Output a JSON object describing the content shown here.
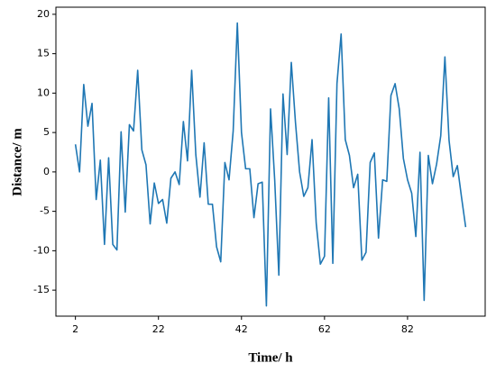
{
  "chart_data": {
    "type": "line",
    "xlabel": "Time/ h",
    "ylabel": "Distance/ m",
    "x": [
      2,
      3,
      4,
      5,
      6,
      7,
      8,
      9,
      10,
      11,
      12,
      13,
      14,
      15,
      16,
      17,
      18,
      19,
      20,
      21,
      22,
      23,
      24,
      25,
      26,
      27,
      28,
      29,
      30,
      31,
      32,
      33,
      34,
      35,
      36,
      37,
      38,
      39,
      40,
      41,
      42,
      43,
      44,
      45,
      46,
      47,
      48,
      49,
      50,
      51,
      52,
      53,
      54,
      55,
      56,
      57,
      58,
      59,
      60,
      61,
      62,
      63,
      64,
      65,
      66,
      67,
      68,
      69,
      70,
      71,
      72,
      73,
      74,
      75,
      76,
      77,
      78,
      79,
      80,
      81,
      82,
      83,
      84,
      85,
      86,
      87,
      88,
      89,
      90,
      91,
      92,
      93,
      94,
      95,
      96
    ],
    "series": [
      {
        "name": "Distance",
        "color": "#1f77b4",
        "values": [
          3.5,
          0,
          11.1,
          5.8,
          8.7,
          -3.5,
          1.5,
          -9.2,
          1.8,
          -9.2,
          -9.9,
          5.1,
          -5.1,
          6,
          5.2,
          12.9,
          2.8,
          0.9,
          -6.6,
          -1.4,
          -4,
          -3.5,
          -6.5,
          -0.8,
          0,
          -1.6,
          6.4,
          1.4,
          12.9,
          2.2,
          -3.2,
          3.7,
          -4.1,
          -4.1,
          -9.5,
          -11.4,
          1.2,
          -1,
          5.2,
          18.9,
          5,
          0.4,
          0.4,
          -5.8,
          -1.5,
          -1.3,
          -17,
          8,
          -1,
          -13.1,
          9.9,
          2.2,
          13.9,
          6.3,
          0,
          -3.1,
          -2,
          4.1,
          -6.5,
          -11.7,
          -10.7,
          9.4,
          -11.6,
          11.2,
          17.5,
          4.1,
          2.1,
          -2,
          -0.3,
          -11.2,
          -10.2,
          1.2,
          2.4,
          -8.4,
          -1,
          -1.2,
          9.7,
          11.2,
          8,
          1.7,
          -1,
          -2.7,
          -8.2,
          2.5,
          -16.3,
          2.1,
          -1.5,
          1,
          4.6,
          14.6,
          4,
          -0.6,
          0.8,
          -3.2,
          -7
        ]
      }
    ],
    "xlim": [
      -2.7,
      100.7
    ],
    "xticks": [
      2,
      22,
      42,
      62,
      82
    ],
    "ylim": [
      -18.3,
      20.9
    ],
    "yticks": [
      -15,
      -10,
      -5,
      0,
      5,
      10,
      15,
      20
    ]
  }
}
